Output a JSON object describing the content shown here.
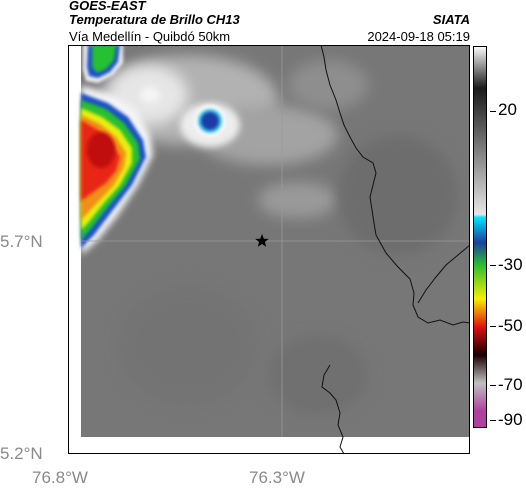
{
  "header": {
    "title_line1": "GOES-EAST",
    "title_line2": "Temperatura de Brillo CH13",
    "title_line3": "Vía Medellín - Quibdó 50km",
    "brand": "SIATA",
    "timestamp": "2024-09-18 05:19"
  },
  "map": {
    "lon_labels": [
      "76.8°W",
      "76.3°W"
    ],
    "lat_labels": [
      "5.7°N",
      "5.2°N"
    ],
    "marker": "star-marker",
    "gridlines": true
  },
  "colorbar": {
    "unit_hint": "°C",
    "tick_labels": [
      "20",
      "-30",
      "-50",
      "-70",
      "-90"
    ],
    "stops": [
      {
        "value": 40,
        "color": "#ffffff"
      },
      {
        "value": 25,
        "color": "#1a1a1a"
      },
      {
        "value": -20,
        "color": "#e6e6e6"
      },
      {
        "value": -21,
        "color": "#00e5ff"
      },
      {
        "value": -30,
        "color": "#1c3f9e"
      },
      {
        "value": -38,
        "color": "#2bbf30"
      },
      {
        "value": -50,
        "color": "#f7f000"
      },
      {
        "value": -60,
        "color": "#e01010"
      },
      {
        "value": -70,
        "color": "#1a0000"
      },
      {
        "value": -80,
        "color": "#c0c0c0"
      },
      {
        "value": -90,
        "color": "#b040a0"
      }
    ]
  },
  "colors": {
    "background_gray": "#737373",
    "border_line": "#111111"
  }
}
